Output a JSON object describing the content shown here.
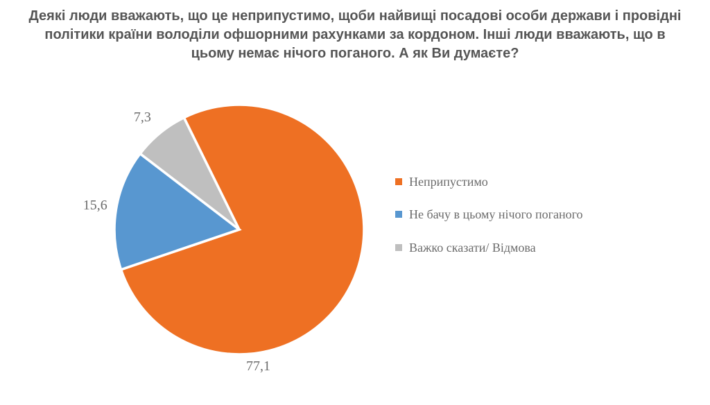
{
  "title": "Деякі люди вважають, що це  неприпустимо, щоби найвищі посадові особи держави і провідні політики країни володіли офшорними рахунками за кордоном. Інші люди вважають, що в цьому немає нічого поганого. А як Ви думаєте?",
  "chart": {
    "type": "pie",
    "background_color": "#ffffff",
    "title_fontsize": 20,
    "title_color": "#555555",
    "label_fontsize": 20,
    "label_color": "#6b6b6b",
    "legend_fontsize": 18,
    "legend_color": "#6b6b6b",
    "stroke_color": "#ffffff",
    "stroke_width": 2,
    "slices": [
      {
        "label": "Неприпустимо",
        "value": 77.1,
        "value_text": "77,1",
        "color": "#ee7023"
      },
      {
        "label": "Не бачу в цьому нічого поганого",
        "value": 15.6,
        "value_text": "15,6",
        "color": "#5897d0"
      },
      {
        "label": "Важко сказати/ Відмова",
        "value": 7.3,
        "value_text": "7,3",
        "color": "#bfbfbf"
      }
    ],
    "start_angle_deg": -26.28
  }
}
